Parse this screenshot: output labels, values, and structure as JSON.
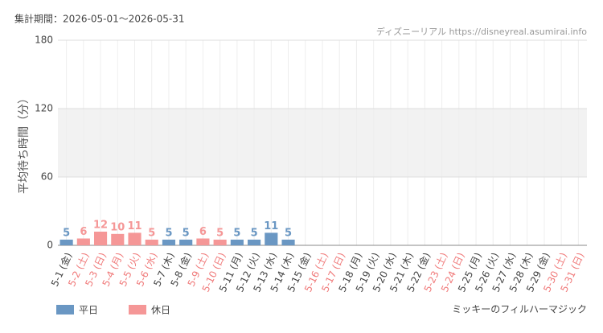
{
  "chart_data": {
    "type": "bar",
    "period": "集計期間：2026-05-01～2026-05-31",
    "source": "ディズニーリアル https://disneyreal.asumirai.info",
    "subtitle": "ミッキーのフィルハーマジック",
    "y_label": "平均待ち時間（分）",
    "categories": [
      "5-1 (金)",
      "5-2 (土)",
      "5-3 (日)",
      "5-4 (月)",
      "5-5 (火)",
      "5-6 (水)",
      "5-7 (木)",
      "5-8 (金)",
      "5-9 (土)",
      "5-10 (日)",
      "5-11 (月)",
      "5-12 (火)",
      "5-13 (水)",
      "5-14 (木)",
      "5-15 (金)",
      "5-16 (土)",
      "5-17 (日)",
      "5-18 (月)",
      "5-19 (火)",
      "5-20 (水)",
      "5-21 (木)",
      "5-22 (金)",
      "5-23 (土)",
      "5-24 (日)",
      "5-25 (月)",
      "5-26 (火)",
      "5-27 (水)",
      "5-28 (木)",
      "5-29 (金)",
      "5-30 (土)",
      "5-31 (日)"
    ],
    "category_colors": [
      "#444",
      "#f07a7a",
      "#f07a7a",
      "#f07a7a",
      "#f07a7a",
      "#f07a7a",
      "#444",
      "#444",
      "#f07a7a",
      "#f07a7a",
      "#444",
      "#444",
      "#444",
      "#444",
      "#444",
      "#f07a7a",
      "#f07a7a",
      "#444",
      "#444",
      "#444",
      "#444",
      "#444",
      "#f07a7a",
      "#f07a7a",
      "#444",
      "#444",
      "#444",
      "#444",
      "#444",
      "#f07a7a",
      "#f07a7a"
    ],
    "series": [
      {
        "name": "平日",
        "color": "#6a97c3",
        "values": [
          5,
          null,
          null,
          null,
          null,
          null,
          5,
          5,
          null,
          null,
          5,
          5,
          11,
          5,
          null,
          null,
          null,
          null,
          null,
          null,
          null,
          null,
          null,
          null,
          null,
          null,
          null,
          null,
          null,
          null,
          null
        ]
      },
      {
        "name": "休日",
        "color": "#f59797",
        "values": [
          null,
          6,
          12,
          10,
          11,
          5,
          null,
          null,
          6,
          5,
          null,
          null,
          null,
          null,
          null,
          null,
          null,
          null,
          null,
          null,
          null,
          null,
          null,
          null,
          null,
          null,
          null,
          null,
          null,
          null,
          null
        ]
      }
    ],
    "ylim": [
      0,
      180
    ],
    "yticks": [
      0,
      60,
      120,
      180
    ],
    "grid": true
  }
}
